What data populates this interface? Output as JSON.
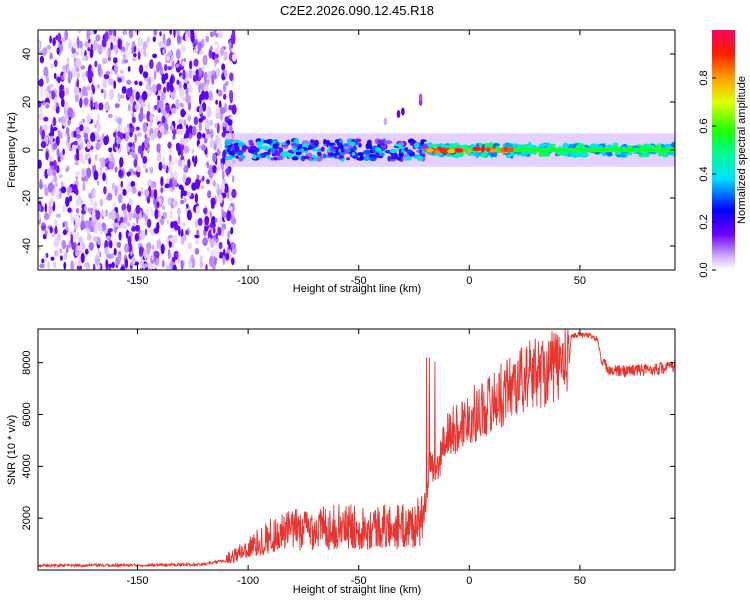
{
  "chart_data": [
    {
      "type": "heatmap",
      "title": "C2E2.2026.090.12.45.R18",
      "xlabel": "Height of straight line (km)",
      "ylabel": "Frequency (Hz)",
      "xlim": [
        -195,
        93
      ],
      "ylim": [
        -50,
        50
      ],
      "xticks": [
        -150,
        -100,
        -50,
        0,
        50
      ],
      "yticks": [
        -40,
        -20,
        0,
        20,
        40
      ],
      "colorbar": {
        "label": "Normalized spectral amplitude",
        "range": [
          0,
          1
        ],
        "ticks": [
          0.0,
          0.2,
          0.4,
          0.6,
          0.8
        ],
        "tick_labels": [
          "0.0",
          "0.2",
          "0.4",
          "0.6",
          "0.8"
        ]
      },
      "regions": [
        {
          "name": "noise",
          "x_range": [
            -195,
            -110
          ],
          "freq_range": [
            -50,
            50
          ],
          "amplitude": 0.15
        },
        {
          "name": "signal-band",
          "x_range": [
            -110,
            93
          ],
          "center_freq": 0,
          "half_width_hz": 4,
          "amplitude": 0.4
        },
        {
          "name": "peak-band",
          "x_range": [
            -20,
            20
          ],
          "center_freq": 0,
          "amplitude": 0.95
        }
      ]
    },
    {
      "type": "line",
      "xlabel": "Height of straight line (km)",
      "ylabel": "SNR (10 * v/v)",
      "xlim": [
        -195,
        93
      ],
      "ylim": [
        0,
        9300
      ],
      "xticks": [
        -150,
        -100,
        -50,
        0,
        50
      ],
      "yticks": [
        2000,
        4000,
        6000,
        8000
      ],
      "color": "#e8332f",
      "series": [
        {
          "name": "SNR",
          "x": [
            -195,
            -150,
            -120,
            -110,
            -100,
            -90,
            -80,
            -70,
            -60,
            -50,
            -40,
            -30,
            -25,
            -20,
            -18,
            -16,
            -14,
            -12,
            -10,
            -5,
            0,
            5,
            10,
            15,
            20,
            25,
            30,
            35,
            40,
            45,
            46,
            50,
            55,
            58,
            60,
            65,
            70,
            75,
            80,
            85,
            90,
            93
          ],
          "y": [
            150,
            170,
            200,
            350,
            700,
            1100,
            1300,
            1350,
            1400,
            1400,
            1400,
            1400,
            1450,
            1700,
            4400,
            3200,
            3700,
            4500,
            4900,
            5200,
            5600,
            5800,
            6100,
            6400,
            6800,
            7000,
            7200,
            7300,
            7450,
            7700,
            9000,
            9050,
            9000,
            8850,
            7900,
            7600,
            7600,
            7650,
            7650,
            7700,
            7750,
            7800
          ]
        }
      ]
    }
  ]
}
